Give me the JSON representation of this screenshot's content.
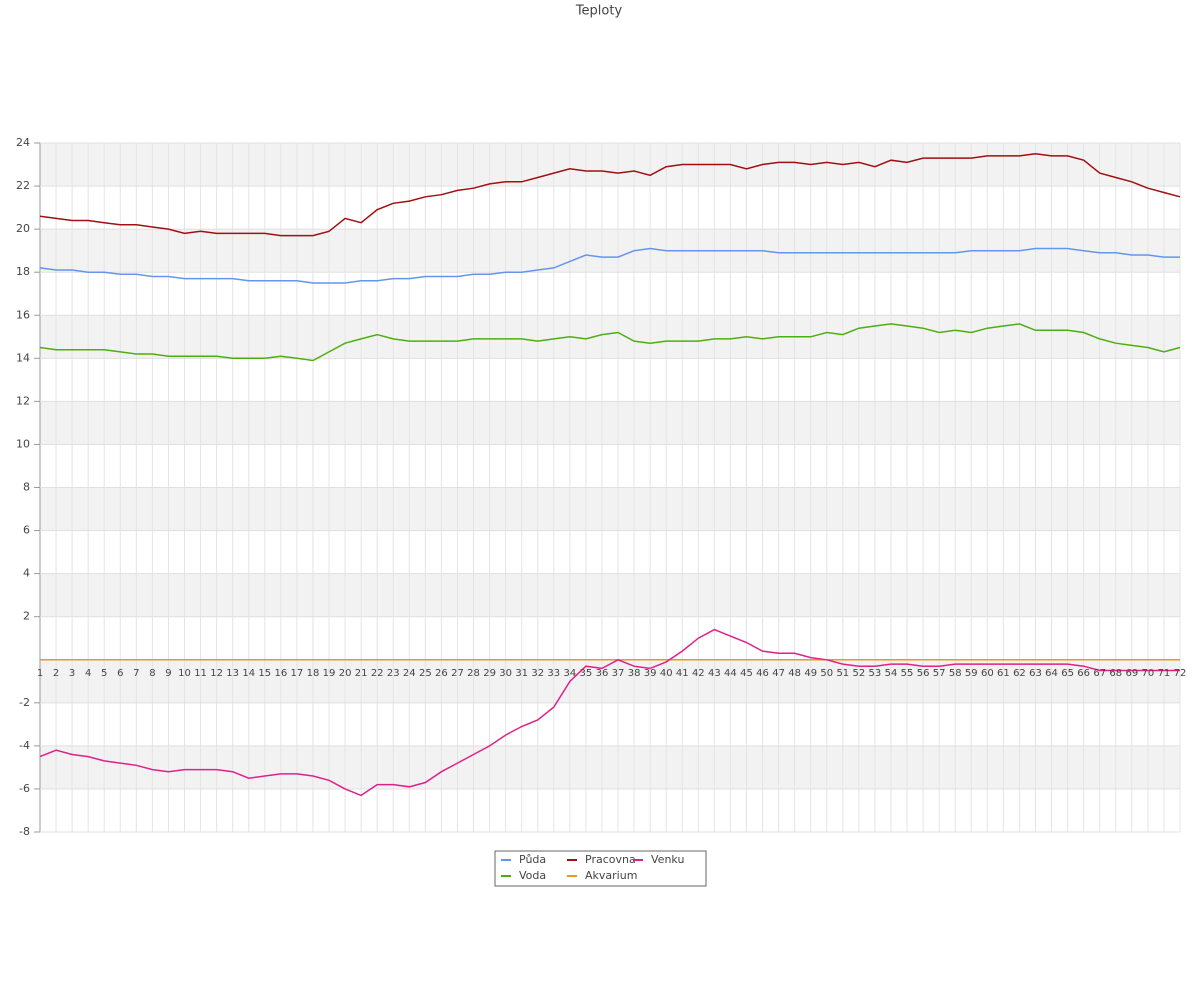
{
  "chart_data": {
    "type": "line",
    "title": "Teploty",
    "categories": [
      "1",
      "2",
      "3",
      "4",
      "5",
      "6",
      "7",
      "8",
      "9",
      "10",
      "11",
      "12",
      "13",
      "14",
      "15",
      "16",
      "17",
      "18",
      "19",
      "20",
      "21",
      "22",
      "23",
      "24",
      "25",
      "26",
      "27",
      "28",
      "29",
      "30",
      "31",
      "32",
      "33",
      "34",
      "35",
      "36",
      "37",
      "38",
      "39",
      "40",
      "41",
      "42",
      "43",
      "44",
      "45",
      "46",
      "47",
      "48",
      "49",
      "50",
      "51",
      "52",
      "53",
      "54",
      "55",
      "56",
      "57",
      "58",
      "59",
      "60",
      "61",
      "62",
      "63",
      "64",
      "65",
      "66",
      "67",
      "68",
      "69",
      "70",
      "71",
      "72"
    ],
    "series": [
      {
        "name": "Půda",
        "color": "#6495ed",
        "values": [
          18.2,
          18.1,
          18.1,
          18.0,
          18.0,
          17.9,
          17.9,
          17.8,
          17.8,
          17.7,
          17.7,
          17.7,
          17.7,
          17.6,
          17.6,
          17.6,
          17.6,
          17.5,
          17.5,
          17.5,
          17.6,
          17.6,
          17.7,
          17.7,
          17.8,
          17.8,
          17.8,
          17.9,
          17.9,
          18.0,
          18.0,
          18.1,
          18.2,
          18.5,
          18.8,
          18.7,
          18.7,
          19.0,
          19.1,
          19.0,
          19.0,
          19.0,
          19.0,
          19.0,
          19.0,
          19.0,
          18.9,
          18.9,
          18.9,
          18.9,
          18.9,
          18.9,
          18.9,
          18.9,
          18.9,
          18.9,
          18.9,
          18.9,
          19.0,
          19.0,
          19.0,
          19.0,
          19.1,
          19.1,
          19.1,
          19.0,
          18.9,
          18.9,
          18.8,
          18.8,
          18.7,
          18.7
        ]
      },
      {
        "name": "Voda",
        "color": "#4caf10",
        "values": [
          14.5,
          14.4,
          14.4,
          14.4,
          14.4,
          14.3,
          14.2,
          14.2,
          14.1,
          14.1,
          14.1,
          14.1,
          14.0,
          14.0,
          14.0,
          14.1,
          14.0,
          13.9,
          14.3,
          14.7,
          14.9,
          15.1,
          14.9,
          14.8,
          14.8,
          14.8,
          14.8,
          14.9,
          14.9,
          14.9,
          14.9,
          14.8,
          14.9,
          15.0,
          14.9,
          15.1,
          15.2,
          14.8,
          14.7,
          14.8,
          14.8,
          14.8,
          14.9,
          14.9,
          15.0,
          14.9,
          15.0,
          15.0,
          15.0,
          15.2,
          15.1,
          15.4,
          15.5,
          15.6,
          15.5,
          15.4,
          15.2,
          15.3,
          15.2,
          15.4,
          15.5,
          15.6,
          15.3,
          15.3,
          15.3,
          15.2,
          14.9,
          14.7,
          14.6,
          14.5,
          14.3,
          14.5
        ]
      },
      {
        "name": "Pracovna",
        "color": "#a01010",
        "values": [
          20.6,
          20.5,
          20.4,
          20.4,
          20.3,
          20.2,
          20.2,
          20.1,
          20.0,
          19.8,
          19.9,
          19.8,
          19.8,
          19.8,
          19.8,
          19.7,
          19.7,
          19.7,
          19.9,
          20.5,
          20.3,
          20.9,
          21.2,
          21.3,
          21.5,
          21.6,
          21.8,
          21.9,
          22.1,
          22.2,
          22.2,
          22.4,
          22.6,
          22.8,
          22.7,
          22.7,
          22.6,
          22.7,
          22.5,
          22.9,
          23.0,
          23.0,
          23.0,
          23.0,
          22.8,
          23.0,
          23.1,
          23.1,
          23.0,
          23.1,
          23.0,
          23.1,
          22.9,
          23.2,
          23.1,
          23.3,
          23.3,
          23.3,
          23.3,
          23.4,
          23.4,
          23.4,
          23.5,
          23.4,
          23.4,
          23.2,
          22.6,
          22.4,
          22.2,
          21.9,
          21.7,
          21.5
        ]
      },
      {
        "name": "Akvarium",
        "color": "#e89a20",
        "values": [
          0,
          0,
          0,
          0,
          0,
          0,
          0,
          0,
          0,
          0,
          0,
          0,
          0,
          0,
          0,
          0,
          0,
          0,
          0,
          0,
          0,
          0,
          0,
          0,
          0,
          0,
          0,
          0,
          0,
          0,
          0,
          0,
          0,
          0,
          0,
          0,
          0,
          0,
          0,
          0,
          0,
          0,
          0,
          0,
          0,
          0,
          0,
          0,
          0,
          0,
          0,
          0,
          0,
          0,
          0,
          0,
          0,
          0,
          0,
          0,
          0,
          0,
          0,
          0,
          0,
          0,
          0,
          0,
          0,
          0,
          0,
          0
        ]
      },
      {
        "name": "Venku",
        "color": "#e0208a",
        "values": [
          -4.5,
          -4.2,
          -4.4,
          -4.5,
          -4.7,
          -4.8,
          -4.9,
          -5.1,
          -5.2,
          -5.1,
          -5.1,
          -5.1,
          -5.2,
          -5.5,
          -5.4,
          -5.3,
          -5.3,
          -5.4,
          -5.6,
          -6.0,
          -6.3,
          -5.8,
          -5.8,
          -5.9,
          -5.7,
          -5.2,
          -4.8,
          -4.4,
          -4.0,
          -3.5,
          -3.1,
          -2.8,
          -2.2,
          -1.0,
          -0.3,
          -0.4,
          0.0,
          -0.3,
          -0.4,
          -0.1,
          0.4,
          1.0,
          1.4,
          1.1,
          0.8,
          0.4,
          0.3,
          0.3,
          0.1,
          0.0,
          -0.2,
          -0.3,
          -0.3,
          -0.2,
          -0.2,
          -0.3,
          -0.3,
          -0.2,
          -0.2,
          -0.2,
          -0.2,
          -0.2,
          -0.2,
          -0.2,
          -0.2,
          -0.3,
          -0.5,
          -0.5,
          -0.5,
          -0.5,
          -0.5,
          -0.5
        ]
      }
    ],
    "ylim": [
      -8,
      24
    ],
    "yticks": [
      -8,
      -6,
      -4,
      -2,
      2,
      4,
      6,
      8,
      10,
      12,
      14,
      16,
      18,
      20,
      22,
      24
    ],
    "grid": true,
    "legend": "bottom"
  }
}
